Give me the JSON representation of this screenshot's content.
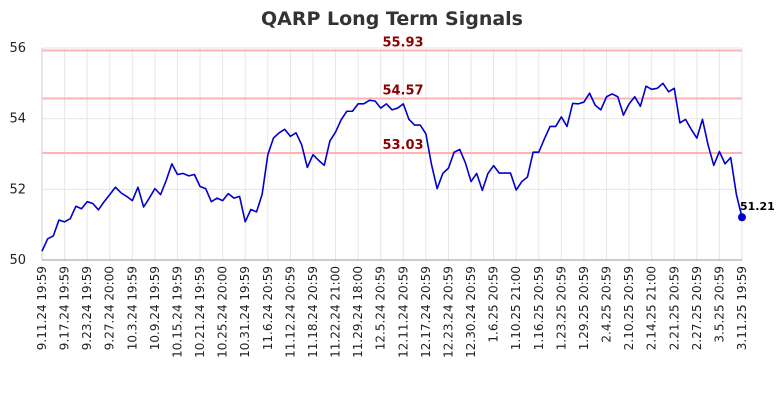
{
  "chart_data": {
    "type": "line",
    "title": "QARP Long Term Signals",
    "xlabel": "",
    "ylabel": "",
    "ylim": [
      50,
      56
    ],
    "yticks": [
      50,
      52,
      54,
      56
    ],
    "grid": true,
    "x_tick_labels": [
      "9.11.24 19:59",
      "9.17.24 19:59",
      "9.23.24 19:59",
      "9.27.24 20:00",
      "10.3.24 19:59",
      "10.9.24 19:59",
      "10.15.24 19:59",
      "10.21.24 19:59",
      "10.25.24 20:00",
      "10.31.24 19:59",
      "11.6.24 20:59",
      "11.12.24 20:59",
      "11.18.24 20:59",
      "11.22.24 21:00",
      "11.29.24 18:00",
      "12.5.24 20:59",
      "12.11.24 20:59",
      "12.17.24 20:59",
      "12.23.24 20:59",
      "12.30.24 20:59",
      "1.6.25 20:59",
      "1.10.25 21:00",
      "1.16.25 20:59",
      "1.23.25 20:59",
      "1.29.25 20:59",
      "2.4.25 20:59",
      "2.10.25 20:59",
      "2.14.25 21:00",
      "2.21.25 20:59",
      "2.27.25 20:59",
      "3.5.25 20:59",
      "3.11.25 19:59"
    ],
    "reference_lines": [
      {
        "value": 55.93,
        "label": "55.93"
      },
      {
        "value": 54.57,
        "label": "54.57"
      },
      {
        "value": 53.03,
        "label": "53.03"
      }
    ],
    "last_value_label": "51.21",
    "colors": {
      "line": "#0000cc",
      "reference": "#ffb3b3",
      "reference_label": "#8b0000",
      "grid": "#e6e6e6"
    },
    "series": [
      {
        "values": [
          50.25,
          50.6,
          50.68,
          51.13,
          51.08,
          51.17,
          51.52,
          51.45,
          51.65,
          51.6,
          51.42,
          51.65,
          51.85,
          52.06,
          51.9,
          51.8,
          51.68,
          52.06,
          51.5,
          51.75,
          52.02,
          51.85,
          52.25,
          52.72,
          52.42,
          52.45,
          52.38,
          52.42,
          52.08,
          52.02,
          51.65,
          51.75,
          51.68,
          51.88,
          51.75,
          51.8,
          51.08,
          51.43,
          51.36,
          51.86,
          52.98,
          53.45,
          53.6,
          53.7,
          53.5,
          53.6,
          53.26,
          52.62,
          52.98,
          52.82,
          52.68,
          53.37,
          53.62,
          53.97,
          54.21,
          54.21,
          54.42,
          54.42,
          54.52,
          54.5,
          54.3,
          54.42,
          54.25,
          54.3,
          54.42,
          53.98,
          53.82,
          53.82,
          53.57,
          52.7,
          52.02,
          52.45,
          52.6,
          53.05,
          53.13,
          52.75,
          52.22,
          52.45,
          51.97,
          52.45,
          52.67,
          52.46,
          52.46,
          52.46,
          51.98,
          52.22,
          52.35,
          53.05,
          53.05,
          53.43,
          53.78,
          53.78,
          54.05,
          53.78,
          54.43,
          54.42,
          54.47,
          54.72,
          54.38,
          54.25,
          54.62,
          54.7,
          54.62,
          54.1,
          54.42,
          54.62,
          54.35,
          54.92,
          54.83,
          54.86,
          55.0,
          54.76,
          54.86,
          53.88,
          53.98,
          53.7,
          53.45,
          53.98,
          53.25,
          52.68,
          53.07,
          52.72,
          52.9,
          51.86,
          51.21
        ]
      }
    ]
  }
}
